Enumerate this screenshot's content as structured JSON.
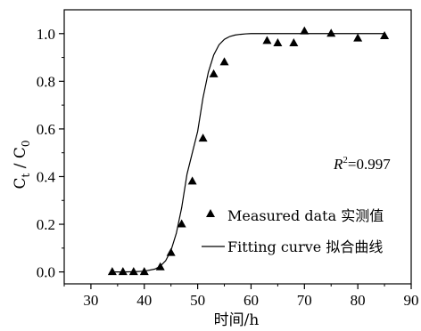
{
  "chart_data": {
    "type": "scatter",
    "title": "",
    "xlabel": "时间/h",
    "ylabel_main": "C",
    "ylabel_sub1": "t",
    "ylabel_sep": " / ",
    "ylabel_main2": "C",
    "ylabel_sub2": "0",
    "xlim": [
      25,
      90
    ],
    "ylim": [
      -0.05,
      1.1
    ],
    "xticks": [
      30,
      40,
      50,
      60,
      70,
      80,
      90
    ],
    "yticks": [
      0.0,
      0.2,
      0.4,
      0.6,
      0.8,
      1.0
    ],
    "xtick_labels": [
      "30",
      "40",
      "50",
      "60",
      "70",
      "80",
      "90"
    ],
    "ytick_labels": [
      "0.0",
      "0.2",
      "0.4",
      "0.6",
      "0.8",
      "1.0"
    ],
    "grid": false,
    "legend_position": "bottom-right",
    "annotation": {
      "italic": "R",
      "sup": "2",
      "rest": "=0.997"
    },
    "series": [
      {
        "name": "Measured data 实测值",
        "type": "scatter",
        "marker": "triangle",
        "x": [
          34,
          36,
          38,
          40,
          43,
          45,
          47,
          49,
          51,
          53,
          55,
          63,
          65,
          68,
          70,
          75,
          80,
          85
        ],
        "y": [
          0.0,
          0.0,
          0.0,
          0.0,
          0.02,
          0.08,
          0.2,
          0.38,
          0.56,
          0.83,
          0.88,
          0.97,
          0.96,
          0.96,
          1.01,
          1.0,
          0.98,
          0.99
        ]
      },
      {
        "name": "Fitting curve 拟合曲线",
        "type": "line",
        "x": [
          34,
          36,
          38,
          40,
          42,
          43,
          44,
          45,
          46,
          47,
          48,
          49,
          50,
          51,
          52,
          53,
          54,
          55,
          56,
          57,
          58,
          59,
          60,
          62,
          65,
          70,
          75,
          80,
          85
        ],
        "y": [
          0.0,
          0.0,
          0.001,
          0.003,
          0.012,
          0.024,
          0.047,
          0.09,
          0.162,
          0.269,
          0.41,
          0.5,
          0.59,
          0.731,
          0.838,
          0.91,
          0.953,
          0.976,
          0.988,
          0.994,
          0.997,
          0.999,
          1.0,
          1.0,
          1.0,
          1.0,
          1.0,
          1.0,
          1.0
        ]
      }
    ],
    "colors": {
      "marker": "#000000",
      "line": "#000000",
      "axis": "#000000"
    }
  }
}
